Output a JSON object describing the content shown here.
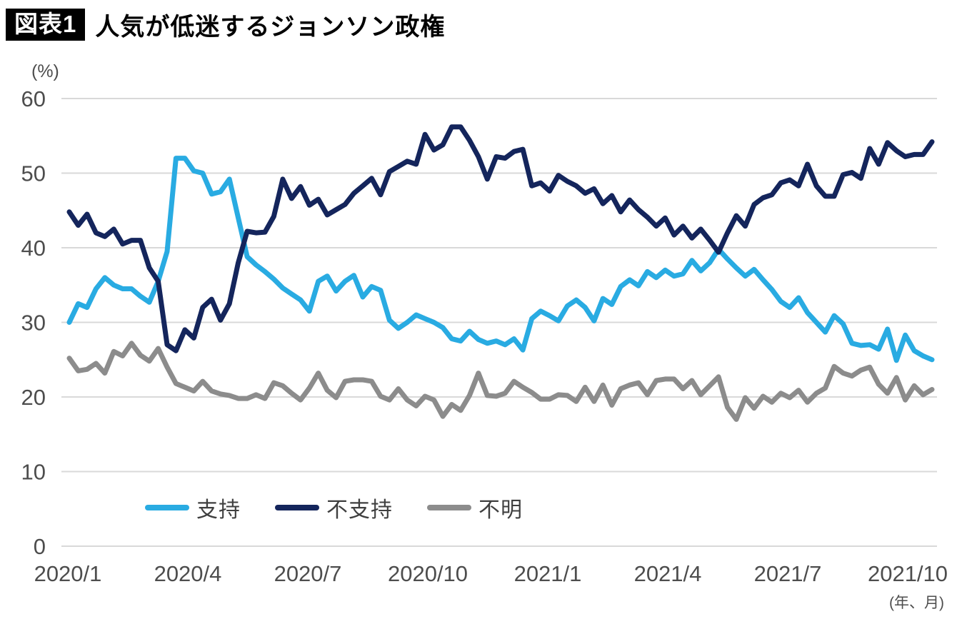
{
  "header": {
    "tag": "図表1",
    "title": "人気が低迷するジョンソン政権"
  },
  "chart_data": {
    "type": "line",
    "title": "人気が低迷するジョンソン政権",
    "y_unit_label": "(%)",
    "x_axis_note": "(年、月)",
    "ylim": [
      0,
      60
    ],
    "y_ticks": [
      0,
      10,
      20,
      30,
      40,
      50,
      60
    ],
    "x_tick_labels": [
      "2020/1",
      "2020/4",
      "2020/7",
      "2020/10",
      "2021/1",
      "2021/4",
      "2021/7",
      "2021/10"
    ],
    "x_description": "weekly opinion polls, January 2020 - late October 2021",
    "grid": "horizontal",
    "legend_position": "bottom",
    "colors": {
      "approval": "#29ABE2",
      "disapproval": "#14255C",
      "unknown": "#8C8C8C",
      "gridline": "#D9D9D9",
      "axis_text": "#4D4D4D"
    },
    "series": [
      {
        "key": "approval",
        "name": "支持",
        "color": "#29ABE2",
        "values": [
          30,
          32.5,
          32,
          34.5,
          36,
          35,
          34.5,
          34.5,
          33.5,
          32.7,
          35.5,
          39.5,
          52,
          52,
          50.3,
          50,
          47.2,
          47.5,
          49.2,
          44,
          38.8,
          37.7,
          36.8,
          35.8,
          34.6,
          33.8,
          33,
          31.5,
          35.5,
          36.2,
          34.2,
          35.5,
          36.3,
          33.4,
          34.8,
          34.3,
          30.3,
          29.2,
          30,
          31,
          30.5,
          30,
          29.3,
          27.8,
          27.5,
          28.8,
          27.7,
          27.2,
          27.5,
          27,
          27.8,
          26.3,
          30.5,
          31.5,
          30.9,
          30.2,
          32.2,
          33,
          32,
          30.2,
          33.2,
          32.4,
          34.8,
          35.7,
          34.9,
          36.8,
          36,
          37,
          36.2,
          36.5,
          38.3,
          36.9,
          38,
          39.8,
          38.5,
          37.3,
          36.2,
          37.1,
          35.7,
          34.4,
          32.8,
          32,
          33.3,
          31.3,
          30,
          28.7,
          30.9,
          29.8,
          27.2,
          26.9,
          27,
          26.4,
          29.1,
          24.9,
          28.3,
          26.2,
          25.5,
          25
        ]
      },
      {
        "key": "disapproval",
        "name": "不支持",
        "color": "#14255C",
        "values": [
          44.8,
          43,
          44.5,
          42,
          41.5,
          42.5,
          40.5,
          41,
          41,
          37.3,
          35.5,
          27,
          26.2,
          29,
          27.9,
          32,
          33.1,
          30.3,
          32.5,
          38,
          42.2,
          42,
          42.1,
          44.2,
          49.2,
          46.6,
          48.2,
          45.7,
          46.5,
          44.4,
          45.1,
          45.8,
          47.3,
          48.3,
          49.3,
          47.1,
          50.2,
          50.9,
          51.6,
          51.2,
          55.2,
          53.1,
          53.8,
          56.2,
          56.2,
          54.4,
          52.2,
          49.2,
          52.2,
          52,
          52.9,
          53.2,
          48.3,
          48.7,
          47.6,
          49.7,
          48.9,
          48.3,
          47.3,
          47.9,
          45.9,
          47,
          44.8,
          46.4,
          45.1,
          44.1,
          42.9,
          44,
          41.7,
          42.9,
          41.3,
          42.5,
          41,
          39.4,
          42,
          44.3,
          42.9,
          45.8,
          46.7,
          47.1,
          48.7,
          49.1,
          48.3,
          51.2,
          48.3,
          46.9,
          46.9,
          49.8,
          50.1,
          49.3,
          53.3,
          51.2,
          54.1,
          53,
          52.2,
          52.5,
          52.5,
          54.2
        ]
      },
      {
        "key": "unknown",
        "name": "不明",
        "color": "#8C8C8C",
        "values": [
          25.2,
          23.5,
          23.7,
          24.5,
          23.2,
          26.1,
          25.5,
          27.2,
          25.6,
          24.8,
          26.5,
          24,
          21.8,
          21.3,
          20.8,
          22.1,
          20.8,
          20.4,
          20.2,
          19.8,
          19.8,
          20.3,
          19.8,
          21.9,
          21.5,
          20.5,
          19.6,
          21.2,
          23.2,
          20.9,
          19.9,
          22.1,
          22.3,
          22.3,
          22.1,
          20.1,
          19.6,
          21.1,
          19.6,
          18.8,
          20.1,
          19.6,
          17.4,
          19,
          18.2,
          20.2,
          23.2,
          20.2,
          20.1,
          20.5,
          22.1,
          21.3,
          20.6,
          19.7,
          19.7,
          20.3,
          20.2,
          19.4,
          21.3,
          19.4,
          21.6,
          18.9,
          21.1,
          21.6,
          21.9,
          20.3,
          22.2,
          22.4,
          22.4,
          21.1,
          22.2,
          20.3,
          21.5,
          22.7,
          18.6,
          17,
          19.9,
          18.5,
          20.1,
          19.3,
          20.5,
          19.9,
          20.9,
          19.3,
          20.5,
          21.2,
          24.1,
          23.2,
          22.8,
          23.6,
          24,
          21.7,
          20.5,
          22.6,
          19.6,
          21.5,
          20.3,
          21
        ]
      }
    ]
  }
}
